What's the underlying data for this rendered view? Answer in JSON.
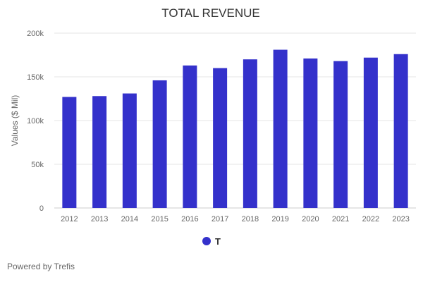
{
  "chart_data": {
    "type": "bar",
    "title": "TOTAL REVENUE",
    "xlabel": "",
    "ylabel": "Values ($ Mil)",
    "categories": [
      "2012",
      "2013",
      "2014",
      "2015",
      "2016",
      "2017",
      "2018",
      "2019",
      "2020",
      "2021",
      "2022",
      "2023"
    ],
    "series": [
      {
        "name": "T",
        "values": [
          127,
          128,
          131,
          146,
          163,
          160,
          170,
          181,
          171,
          168,
          172,
          176
        ],
        "color": "#3431cb"
      }
    ],
    "value_unit": "thousands ($ Mil)",
    "ylim": [
      0,
      200
    ],
    "yticks": [
      0,
      50,
      100,
      150,
      200
    ],
    "ytick_labels": [
      "0",
      "50k",
      "100k",
      "150k",
      "200k"
    ],
    "grid": true,
    "legend_position": "bottom"
  },
  "footer": {
    "text": "Powered by Trefis"
  }
}
